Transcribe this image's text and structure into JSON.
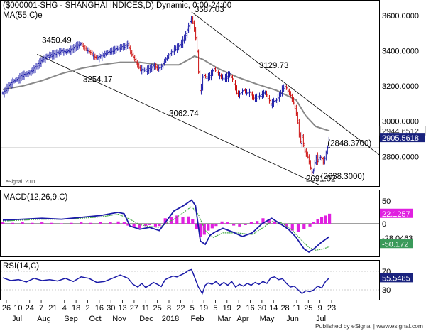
{
  "header": {
    "title": "($000001-SHG - SHANGHAI INDICES,D) Dynamic, 0:00-24:00",
    "ma_label": "MA(55,C)e"
  },
  "footer": {
    "copyright": "eSignal, 2011",
    "published": "Published by eSignal | www.esignal.com"
  },
  "colors": {
    "up": "#1a1aa8",
    "down": "#cc1010",
    "ma": "#888888",
    "macd": "#1a1aa8",
    "signal": "#44aa44",
    "histogram": "#e020e0",
    "rsi": "#1a1aa8",
    "price_tag": "#1a237e",
    "macd_tag": "#e020e0",
    "signal_tag": "#3a9a5a"
  },
  "chart_data": [
    {
      "type": "candlestick",
      "title": "($000001-SHG - SHANGHAI INDICES,D) Dynamic, 0:00-24:00",
      "series_ma": "MA(55,C)e",
      "y_ticks": [
        "3600.0000",
        "3400.0000",
        "3200.0000",
        "3000.0000",
        "2800.0000"
      ],
      "ylim": [
        2640,
        3680
      ],
      "price_labels": [
        "2944.6512",
        "2905.5618"
      ],
      "annotations": [
        "3587.03",
        "3450.49",
        "3254.17",
        "3062.74",
        "3129.73",
        "2691.02",
        "(2848.3700)",
        "(2638.3000)"
      ],
      "horizontal_line": 2848.37,
      "close_path": [
        [
          0,
          3160
        ],
        [
          5,
          3200
        ],
        [
          10,
          3225
        ],
        [
          15,
          3240
        ],
        [
          20,
          3265
        ],
        [
          25,
          3270
        ],
        [
          30,
          3290
        ],
        [
          35,
          3320
        ],
        [
          40,
          3350
        ],
        [
          45,
          3370
        ],
        [
          50,
          3380
        ],
        [
          55,
          3390
        ],
        [
          60,
          3400
        ],
        [
          65,
          3395
        ],
        [
          70,
          3410
        ],
        [
          75,
          3430
        ],
        [
          80,
          3440
        ],
        [
          85,
          3410
        ],
        [
          90,
          3390
        ],
        [
          95,
          3360
        ],
        [
          100,
          3370
        ],
        [
          105,
          3385
        ],
        [
          110,
          3400
        ],
        [
          115,
          3410
        ],
        [
          120,
          3420
        ],
        [
          125,
          3430
        ],
        [
          128,
          3440
        ],
        [
          130,
          3400
        ],
        [
          135,
          3350
        ],
        [
          140,
          3300
        ],
        [
          145,
          3290
        ],
        [
          150,
          3300
        ],
        [
          155,
          3320
        ],
        [
          158,
          3300
        ],
        [
          162,
          3310
        ],
        [
          165,
          3340
        ],
        [
          170,
          3380
        ],
        [
          175,
          3410
        ],
        [
          178,
          3420
        ],
        [
          182,
          3440
        ],
        [
          186,
          3480
        ],
        [
          189,
          3530
        ],
        [
          191,
          3560
        ],
        [
          193,
          3587
        ],
        [
          195,
          3550
        ],
        [
          198,
          3450
        ],
        [
          200,
          3290
        ],
        [
          202,
          3140
        ],
        [
          204,
          3250
        ],
        [
          206,
          3260
        ],
        [
          208,
          3250
        ],
        [
          212,
          3260
        ],
        [
          216,
          3300
        ],
        [
          220,
          3270
        ],
        [
          224,
          3250
        ],
        [
          228,
          3250
        ],
        [
          232,
          3270
        ],
        [
          236,
          3230
        ],
        [
          240,
          3150
        ],
        [
          243,
          3160
        ],
        [
          246,
          3180
        ],
        [
          250,
          3160
        ],
        [
          253,
          3170
        ],
        [
          256,
          3130
        ],
        [
          260,
          3140
        ],
        [
          264,
          3150
        ],
        [
          268,
          3165
        ],
        [
          271,
          3140
        ],
        [
          274,
          3100
        ],
        [
          277,
          3115
        ],
        [
          280,
          3120
        ],
        [
          283,
          3150
        ],
        [
          286,
          3190
        ],
        [
          289,
          3200
        ],
        [
          292,
          3170
        ],
        [
          295,
          3140
        ],
        [
          298,
          3100
        ],
        [
          300,
          3050
        ],
        [
          302,
          2990
        ],
        [
          304,
          2870
        ],
        [
          306,
          2920
        ],
        [
          308,
          2850
        ],
        [
          310,
          2820
        ],
        [
          312,
          2800
        ],
        [
          314,
          2750
        ],
        [
          316,
          2710
        ],
        [
          318,
          2720
        ],
        [
          320,
          2800
        ],
        [
          322,
          2770
        ],
        [
          324,
          2800
        ],
        [
          326,
          2790
        ],
        [
          328,
          2760
        ],
        [
          330,
          2810
        ],
        [
          332,
          2850
        ],
        [
          334,
          2905
        ]
      ],
      "ma_path": [
        [
          0,
          3180
        ],
        [
          20,
          3200
        ],
        [
          40,
          3230
        ],
        [
          60,
          3270
        ],
        [
          80,
          3300
        ],
        [
          100,
          3320
        ],
        [
          120,
          3335
        ],
        [
          140,
          3335
        ],
        [
          160,
          3320
        ],
        [
          180,
          3320
        ],
        [
          190,
          3350
        ],
        [
          196,
          3370
        ],
        [
          205,
          3350
        ],
        [
          220,
          3300
        ],
        [
          240,
          3250
        ],
        [
          260,
          3210
        ],
        [
          280,
          3175
        ],
        [
          300,
          3120
        ],
        [
          310,
          3030
        ],
        [
          320,
          2970
        ],
        [
          334,
          2945
        ]
      ]
    },
    {
      "type": "line",
      "title": "MACD(12,26,9,C)",
      "y_ticks": [
        "50",
        "0"
      ],
      "ylim": [
        -70,
        70
      ],
      "value_labels": [
        "22.1257",
        "-28.0463",
        "-50.172"
      ],
      "series": [
        {
          "name": "MACD",
          "values": [
            [
              0,
              8
            ],
            [
              20,
              10
            ],
            [
              40,
              12
            ],
            [
              60,
              10
            ],
            [
              80,
              14
            ],
            [
              100,
              18
            ],
            [
              118,
              25
            ],
            [
              124,
              22
            ],
            [
              130,
              -5
            ],
            [
              140,
              -12
            ],
            [
              150,
              -8
            ],
            [
              160,
              -15
            ],
            [
              175,
              28
            ],
            [
              185,
              40
            ],
            [
              193,
              52
            ],
            [
              197,
              40
            ],
            [
              202,
              -38
            ],
            [
              207,
              -45
            ],
            [
              212,
              -25
            ],
            [
              217,
              -18
            ],
            [
              225,
              -10
            ],
            [
              235,
              -18
            ],
            [
              245,
              -28
            ],
            [
              255,
              -20
            ],
            [
              265,
              0
            ],
            [
              275,
              12
            ],
            [
              285,
              -2
            ],
            [
              292,
              -12
            ],
            [
              300,
              -30
            ],
            [
              308,
              -55
            ],
            [
              313,
              -62
            ],
            [
              318,
              -55
            ],
            [
              325,
              -42
            ],
            [
              334,
              -28
            ]
          ]
        },
        {
          "name": "Signal",
          "values": [
            [
              0,
              6
            ],
            [
              20,
              8
            ],
            [
              40,
              10
            ],
            [
              60,
              10
            ],
            [
              80,
              12
            ],
            [
              100,
              15
            ],
            [
              118,
              21
            ],
            [
              130,
              10
            ],
            [
              140,
              -2
            ],
            [
              150,
              -6
            ],
            [
              160,
              -8
            ],
            [
              175,
              10
            ],
            [
              185,
              25
            ],
            [
              193,
              38
            ],
            [
              200,
              20
            ],
            [
              207,
              -15
            ],
            [
              215,
              -30
            ],
            [
              225,
              -20
            ],
            [
              240,
              -20
            ],
            [
              255,
              -24
            ],
            [
              265,
              -10
            ],
            [
              275,
              5
            ],
            [
              285,
              2
            ],
            [
              295,
              -12
            ],
            [
              305,
              -35
            ],
            [
              313,
              -52
            ],
            [
              320,
              -58
            ],
            [
              328,
              -55
            ],
            [
              334,
              -50
            ]
          ]
        }
      ],
      "histogram": [
        [
          0,
          3
        ],
        [
          10,
          2
        ],
        [
          20,
          3
        ],
        [
          30,
          2
        ],
        [
          40,
          3
        ],
        [
          50,
          2
        ],
        [
          60,
          1
        ],
        [
          70,
          2
        ],
        [
          80,
          3
        ],
        [
          90,
          2
        ],
        [
          100,
          4
        ],
        [
          110,
          3
        ],
        [
          118,
          5
        ],
        [
          124,
          3
        ],
        [
          128,
          -4
        ],
        [
          134,
          -8
        ],
        [
          140,
          -10
        ],
        [
          146,
          -5
        ],
        [
          150,
          -3
        ],
        [
          156,
          -6
        ],
        [
          160,
          -5
        ],
        [
          166,
          12
        ],
        [
          172,
          15
        ],
        [
          178,
          18
        ],
        [
          184,
          14
        ],
        [
          190,
          16
        ],
        [
          194,
          10
        ],
        [
          198,
          -12
        ],
        [
          202,
          -28
        ],
        [
          206,
          -24
        ],
        [
          210,
          -15
        ],
        [
          214,
          -10
        ],
        [
          218,
          -5
        ],
        [
          224,
          5
        ],
        [
          230,
          3
        ],
        [
          236,
          -4
        ],
        [
          242,
          -6
        ],
        [
          248,
          -3
        ],
        [
          254,
          4
        ],
        [
          260,
          6
        ],
        [
          266,
          12
        ],
        [
          272,
          10
        ],
        [
          278,
          5
        ],
        [
          284,
          -2
        ],
        [
          290,
          -8
        ],
        [
          296,
          -15
        ],
        [
          302,
          -18
        ],
        [
          308,
          -12
        ],
        [
          314,
          -6
        ],
        [
          318,
          4
        ],
        [
          322,
          10
        ],
        [
          326,
          14
        ],
        [
          330,
          18
        ],
        [
          334,
          22
        ]
      ]
    },
    {
      "type": "line",
      "title": "RSI(14,C)",
      "y_ticks": [
        "70",
        "30"
      ],
      "ylim": [
        10,
        90
      ],
      "value_labels": [
        "55.5485"
      ],
      "series": [
        {
          "name": "RSI",
          "values": [
            [
              0,
              56
            ],
            [
              8,
              50
            ],
            [
              16,
              52
            ],
            [
              24,
              47
            ],
            [
              32,
              55
            ],
            [
              40,
              50
            ],
            [
              48,
              52
            ],
            [
              56,
              49
            ],
            [
              64,
              55
            ],
            [
              72,
              48
            ],
            [
              80,
              58
            ],
            [
              88,
              55
            ],
            [
              96,
              46
            ],
            [
              104,
              48
            ],
            [
              112,
              55
            ],
            [
              120,
              62
            ],
            [
              128,
              55
            ],
            [
              133,
              42
            ],
            [
              138,
              36
            ],
            [
              142,
              44
            ],
            [
              146,
              35
            ],
            [
              150,
              40
            ],
            [
              154,
              46
            ],
            [
              158,
              42
            ],
            [
              162,
              37
            ],
            [
              166,
              52
            ],
            [
              170,
              56
            ],
            [
              174,
              60
            ],
            [
              178,
              58
            ],
            [
              182,
              62
            ],
            [
              186,
              66
            ],
            [
              190,
              72
            ],
            [
              193,
              74
            ],
            [
              196,
              58
            ],
            [
              200,
              36
            ],
            [
              204,
              22
            ],
            [
              207,
              40
            ],
            [
              210,
              45
            ],
            [
              214,
              42
            ],
            [
              218,
              48
            ],
            [
              222,
              40
            ],
            [
              226,
              46
            ],
            [
              230,
              40
            ],
            [
              234,
              48
            ],
            [
              238,
              36
            ],
            [
              242,
              42
            ],
            [
              246,
              38
            ],
            [
              250,
              44
            ],
            [
              254,
              40
            ],
            [
              258,
              46
            ],
            [
              262,
              42
            ],
            [
              266,
              48
            ],
            [
              270,
              44
            ],
            [
              274,
              56
            ],
            [
              278,
              58
            ],
            [
              282,
              52
            ],
            [
              286,
              54
            ],
            [
              290,
              44
            ],
            [
              294,
              36
            ],
            [
              298,
              38
            ],
            [
              302,
              30
            ],
            [
              306,
              22
            ],
            [
              310,
              28
            ],
            [
              314,
              26
            ],
            [
              318,
              30
            ],
            [
              322,
              38
            ],
            [
              326,
              34
            ],
            [
              330,
              48
            ],
            [
              334,
              56
            ]
          ]
        }
      ]
    }
  ],
  "x_axis": {
    "day_labels": [
      "26",
      "10",
      "24",
      "7",
      "21",
      "4",
      "18",
      "2",
      "16",
      "30",
      "13",
      "27",
      "11",
      "25",
      "8",
      "22",
      "5",
      "19",
      "5",
      "19",
      "2",
      "16",
      "30",
      "14",
      "28",
      "11",
      "25",
      "9",
      "23"
    ],
    "month_labels": [
      "Jul",
      "Aug",
      "Sep",
      "Oct",
      "Nov",
      "Dec",
      "2018",
      "Feb",
      "Mar",
      "Apr",
      "May",
      "Jun",
      "Jul"
    ]
  }
}
